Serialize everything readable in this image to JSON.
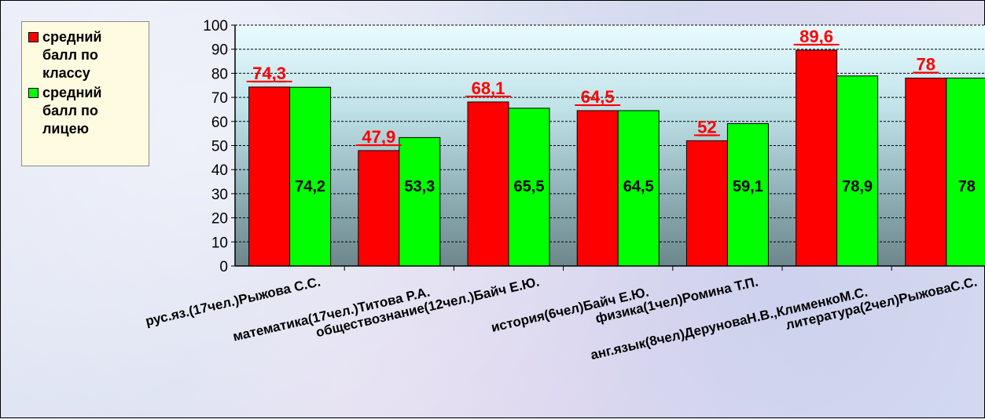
{
  "chart_data": {
    "type": "bar",
    "categories": [
      "рус.яз.(17чел.)Рыжова С.С.",
      "математика(17чел.)Титова Р.А.",
      "обществознание(12чел.)Байч Е.Ю.",
      "история(6чел)Байч Е.Ю.",
      "физика(1чел)Ромина Т.П.",
      "анг.язык(8чел)ДеруноваН.В.,КлименкоМ.С.",
      "литература(2чел)РыжоваС.С."
    ],
    "series": [
      {
        "name": "средний балл по классу",
        "color": "#ff0000",
        "values": [
          74.3,
          47.9,
          68.1,
          64.5,
          52,
          89.6,
          78
        ],
        "labels": [
          "74,3",
          "47,9",
          "68,1",
          "64,5",
          "52",
          "89,6",
          "78"
        ]
      },
      {
        "name": "средний балл по лицею",
        "color": "#00ff00",
        "values": [
          74.2,
          53.3,
          65.5,
          64.5,
          59.1,
          78.9,
          78
        ],
        "labels": [
          "74,2",
          "53,3",
          "65,5",
          "64,5",
          "59,1",
          "78,9",
          "78"
        ]
      }
    ],
    "ylim": [
      0,
      100
    ],
    "yticks": [
      "0",
      "10",
      "20",
      "30",
      "40",
      "50",
      "60",
      "70",
      "80",
      "90",
      "100"
    ],
    "title": "",
    "xlabel": "",
    "ylabel": "",
    "grid": true,
    "legend_position": "top-left"
  }
}
